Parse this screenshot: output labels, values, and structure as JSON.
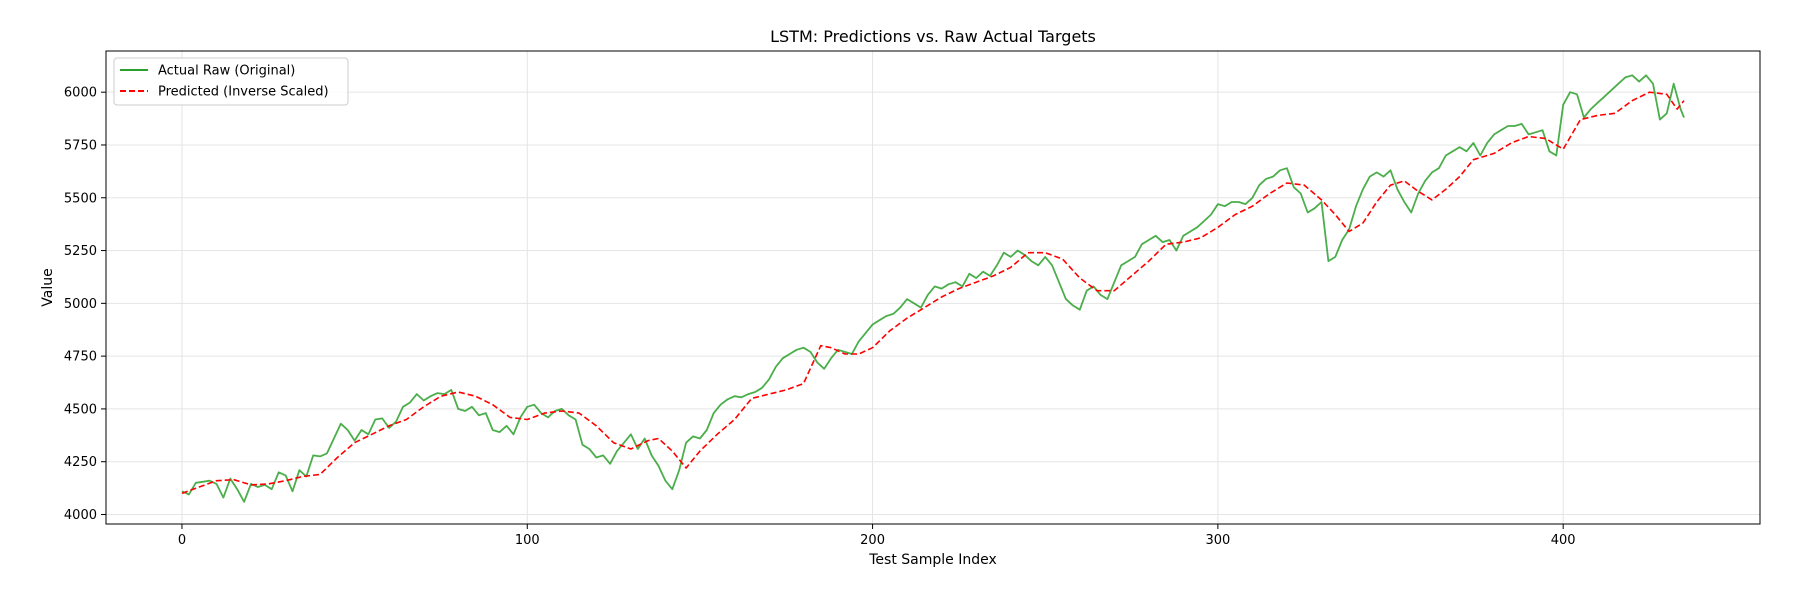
{
  "chart_data": {
    "type": "line",
    "title": "LSTM: Predictions vs. Raw Actual Targets",
    "xlabel": "Test Sample Index",
    "ylabel": "Value",
    "xlim": [
      -22,
      457
    ],
    "ylim": [
      3955,
      6195
    ],
    "xticks": [
      0,
      100,
      200,
      300,
      400
    ],
    "yticks": [
      4000,
      4250,
      4500,
      4750,
      5000,
      5250,
      5500,
      5750,
      6000
    ],
    "grid": true,
    "legend_position": "top-left",
    "series": [
      {
        "name": "Actual Raw (Original)",
        "color": "#2ca02c",
        "style": "solid",
        "points": [
          [
            0,
            4110
          ],
          [
            2,
            4095
          ],
          [
            4,
            4150
          ],
          [
            6,
            4155
          ],
          [
            8,
            4160
          ],
          [
            10,
            4145
          ],
          [
            12,
            4080
          ],
          [
            14,
            4170
          ],
          [
            16,
            4120
          ],
          [
            18,
            4060
          ],
          [
            20,
            4145
          ],
          [
            22,
            4130
          ],
          [
            24,
            4140
          ],
          [
            26,
            4120
          ],
          [
            28,
            4200
          ],
          [
            30,
            4185
          ],
          [
            32,
            4110
          ],
          [
            34,
            4210
          ],
          [
            36,
            4180
          ],
          [
            38,
            4280
          ],
          [
            40,
            4275
          ],
          [
            42,
            4290
          ],
          [
            44,
            4360
          ],
          [
            46,
            4430
          ],
          [
            48,
            4400
          ],
          [
            50,
            4350
          ],
          [
            52,
            4400
          ],
          [
            54,
            4380
          ],
          [
            56,
            4450
          ],
          [
            58,
            4455
          ],
          [
            60,
            4410
          ],
          [
            62,
            4440
          ],
          [
            64,
            4510
          ],
          [
            66,
            4530
          ],
          [
            68,
            4570
          ],
          [
            70,
            4540
          ],
          [
            72,
            4560
          ],
          [
            74,
            4575
          ],
          [
            76,
            4570
          ],
          [
            78,
            4590
          ],
          [
            80,
            4500
          ],
          [
            82,
            4490
          ],
          [
            84,
            4510
          ],
          [
            86,
            4470
          ],
          [
            88,
            4480
          ],
          [
            90,
            4400
          ],
          [
            92,
            4390
          ],
          [
            94,
            4420
          ],
          [
            96,
            4380
          ],
          [
            98,
            4460
          ],
          [
            100,
            4510
          ],
          [
            102,
            4520
          ],
          [
            104,
            4480
          ],
          [
            106,
            4460
          ],
          [
            108,
            4490
          ],
          [
            110,
            4500
          ],
          [
            112,
            4470
          ],
          [
            114,
            4450
          ],
          [
            116,
            4330
          ],
          [
            118,
            4310
          ],
          [
            120,
            4270
          ],
          [
            122,
            4280
          ],
          [
            124,
            4240
          ],
          [
            126,
            4300
          ],
          [
            128,
            4340
          ],
          [
            130,
            4380
          ],
          [
            132,
            4310
          ],
          [
            134,
            4360
          ],
          [
            136,
            4280
          ],
          [
            138,
            4230
          ],
          [
            140,
            4160
          ],
          [
            142,
            4120
          ],
          [
            144,
            4210
          ],
          [
            146,
            4340
          ],
          [
            148,
            4370
          ],
          [
            150,
            4360
          ],
          [
            152,
            4400
          ],
          [
            154,
            4480
          ],
          [
            156,
            4520
          ],
          [
            158,
            4545
          ],
          [
            160,
            4560
          ],
          [
            162,
            4555
          ],
          [
            164,
            4570
          ],
          [
            166,
            4580
          ],
          [
            168,
            4600
          ],
          [
            170,
            4640
          ],
          [
            172,
            4700
          ],
          [
            174,
            4740
          ],
          [
            176,
            4760
          ],
          [
            178,
            4780
          ],
          [
            180,
            4790
          ],
          [
            182,
            4770
          ],
          [
            184,
            4720
          ],
          [
            186,
            4690
          ],
          [
            188,
            4740
          ],
          [
            190,
            4780
          ],
          [
            192,
            4770
          ],
          [
            194,
            4760
          ],
          [
            196,
            4820
          ],
          [
            198,
            4860
          ],
          [
            200,
            4900
          ],
          [
            202,
            4920
          ],
          [
            204,
            4940
          ],
          [
            206,
            4950
          ],
          [
            208,
            4980
          ],
          [
            210,
            5020
          ],
          [
            212,
            5000
          ],
          [
            214,
            4980
          ],
          [
            216,
            5040
          ],
          [
            218,
            5080
          ],
          [
            220,
            5070
          ],
          [
            222,
            5090
          ],
          [
            224,
            5100
          ],
          [
            226,
            5080
          ],
          [
            228,
            5140
          ],
          [
            230,
            5120
          ],
          [
            232,
            5150
          ],
          [
            234,
            5130
          ],
          [
            236,
            5180
          ],
          [
            238,
            5240
          ],
          [
            240,
            5220
          ],
          [
            242,
            5250
          ],
          [
            244,
            5230
          ],
          [
            246,
            5200
          ],
          [
            248,
            5180
          ],
          [
            250,
            5220
          ],
          [
            252,
            5180
          ],
          [
            254,
            5100
          ],
          [
            256,
            5020
          ],
          [
            258,
            4990
          ],
          [
            260,
            4970
          ],
          [
            262,
            5060
          ],
          [
            264,
            5080
          ],
          [
            266,
            5040
          ],
          [
            268,
            5020
          ],
          [
            270,
            5100
          ],
          [
            272,
            5180
          ],
          [
            274,
            5200
          ],
          [
            276,
            5220
          ],
          [
            278,
            5280
          ],
          [
            280,
            5300
          ],
          [
            282,
            5320
          ],
          [
            284,
            5290
          ],
          [
            286,
            5300
          ],
          [
            288,
            5250
          ],
          [
            290,
            5320
          ],
          [
            292,
            5340
          ],
          [
            294,
            5360
          ],
          [
            296,
            5390
          ],
          [
            298,
            5420
          ],
          [
            300,
            5470
          ],
          [
            302,
            5460
          ],
          [
            304,
            5480
          ],
          [
            306,
            5480
          ],
          [
            308,
            5470
          ],
          [
            310,
            5500
          ],
          [
            312,
            5560
          ],
          [
            314,
            5590
          ],
          [
            316,
            5600
          ],
          [
            318,
            5630
          ],
          [
            320,
            5640
          ],
          [
            322,
            5550
          ],
          [
            324,
            5520
          ],
          [
            326,
            5430
          ],
          [
            328,
            5450
          ],
          [
            330,
            5480
          ],
          [
            332,
            5200
          ],
          [
            334,
            5220
          ],
          [
            336,
            5300
          ],
          [
            338,
            5350
          ],
          [
            340,
            5460
          ],
          [
            342,
            5540
          ],
          [
            344,
            5600
          ],
          [
            346,
            5620
          ],
          [
            348,
            5600
          ],
          [
            350,
            5630
          ],
          [
            352,
            5540
          ],
          [
            354,
            5480
          ],
          [
            356,
            5430
          ],
          [
            358,
            5520
          ],
          [
            360,
            5580
          ],
          [
            362,
            5620
          ],
          [
            364,
            5640
          ],
          [
            366,
            5700
          ],
          [
            368,
            5720
          ],
          [
            370,
            5740
          ],
          [
            372,
            5720
          ],
          [
            374,
            5760
          ],
          [
            376,
            5700
          ],
          [
            378,
            5760
          ],
          [
            380,
            5800
          ],
          [
            382,
            5820
          ],
          [
            384,
            5840
          ],
          [
            386,
            5840
          ],
          [
            388,
            5850
          ],
          [
            390,
            5800
          ],
          [
            392,
            5810
          ],
          [
            394,
            5820
          ],
          [
            396,
            5720
          ],
          [
            398,
            5700
          ],
          [
            400,
            5940
          ],
          [
            402,
            6000
          ],
          [
            404,
            5990
          ],
          [
            406,
            5880
          ],
          [
            408,
            5920
          ],
          [
            410,
            5950
          ],
          [
            412,
            5980
          ],
          [
            414,
            6010
          ],
          [
            416,
            6040
          ],
          [
            418,
            6070
          ],
          [
            420,
            6080
          ],
          [
            422,
            6050
          ],
          [
            424,
            6080
          ],
          [
            426,
            6040
          ],
          [
            428,
            5870
          ],
          [
            430,
            5900
          ],
          [
            432,
            6040
          ],
          [
            434,
            5920
          ],
          [
            435,
            5880
          ]
        ]
      },
      {
        "name": "Predicted (Inverse Scaled)",
        "color": "#ff0000",
        "style": "dashed",
        "points": [
          [
            0,
            4100
          ],
          [
            5,
            4130
          ],
          [
            10,
            4160
          ],
          [
            15,
            4165
          ],
          [
            20,
            4140
          ],
          [
            25,
            4145
          ],
          [
            30,
            4160
          ],
          [
            35,
            4180
          ],
          [
            40,
            4190
          ],
          [
            45,
            4270
          ],
          [
            50,
            4340
          ],
          [
            55,
            4380
          ],
          [
            60,
            4420
          ],
          [
            65,
            4450
          ],
          [
            70,
            4510
          ],
          [
            75,
            4560
          ],
          [
            80,
            4580
          ],
          [
            85,
            4560
          ],
          [
            90,
            4520
          ],
          [
            95,
            4460
          ],
          [
            100,
            4450
          ],
          [
            105,
            4480
          ],
          [
            110,
            4490
          ],
          [
            115,
            4480
          ],
          [
            120,
            4420
          ],
          [
            125,
            4340
          ],
          [
            130,
            4310
          ],
          [
            135,
            4350
          ],
          [
            138,
            4360
          ],
          [
            142,
            4300
          ],
          [
            146,
            4220
          ],
          [
            150,
            4300
          ],
          [
            155,
            4380
          ],
          [
            160,
            4450
          ],
          [
            165,
            4550
          ],
          [
            170,
            4570
          ],
          [
            175,
            4590
          ],
          [
            180,
            4620
          ],
          [
            185,
            4800
          ],
          [
            188,
            4790
          ],
          [
            192,
            4760
          ],
          [
            196,
            4760
          ],
          [
            200,
            4790
          ],
          [
            205,
            4870
          ],
          [
            210,
            4930
          ],
          [
            215,
            4980
          ],
          [
            220,
            5030
          ],
          [
            225,
            5070
          ],
          [
            230,
            5100
          ],
          [
            235,
            5130
          ],
          [
            240,
            5170
          ],
          [
            245,
            5240
          ],
          [
            250,
            5240
          ],
          [
            255,
            5210
          ],
          [
            260,
            5120
          ],
          [
            265,
            5060
          ],
          [
            270,
            5060
          ],
          [
            275,
            5130
          ],
          [
            280,
            5200
          ],
          [
            285,
            5280
          ],
          [
            290,
            5290
          ],
          [
            295,
            5310
          ],
          [
            300,
            5360
          ],
          [
            305,
            5420
          ],
          [
            310,
            5460
          ],
          [
            315,
            5520
          ],
          [
            320,
            5570
          ],
          [
            325,
            5560
          ],
          [
            330,
            5490
          ],
          [
            334,
            5420
          ],
          [
            338,
            5340
          ],
          [
            342,
            5380
          ],
          [
            346,
            5480
          ],
          [
            350,
            5560
          ],
          [
            354,
            5580
          ],
          [
            358,
            5530
          ],
          [
            362,
            5490
          ],
          [
            366,
            5540
          ],
          [
            370,
            5600
          ],
          [
            374,
            5680
          ],
          [
            380,
            5710
          ],
          [
            385,
            5760
          ],
          [
            390,
            5790
          ],
          [
            395,
            5780
          ],
          [
            400,
            5730
          ],
          [
            405,
            5870
          ],
          [
            410,
            5890
          ],
          [
            415,
            5900
          ],
          [
            420,
            5960
          ],
          [
            425,
            6000
          ],
          [
            430,
            5990
          ],
          [
            433,
            5920
          ],
          [
            435,
            5960
          ]
        ]
      }
    ]
  }
}
